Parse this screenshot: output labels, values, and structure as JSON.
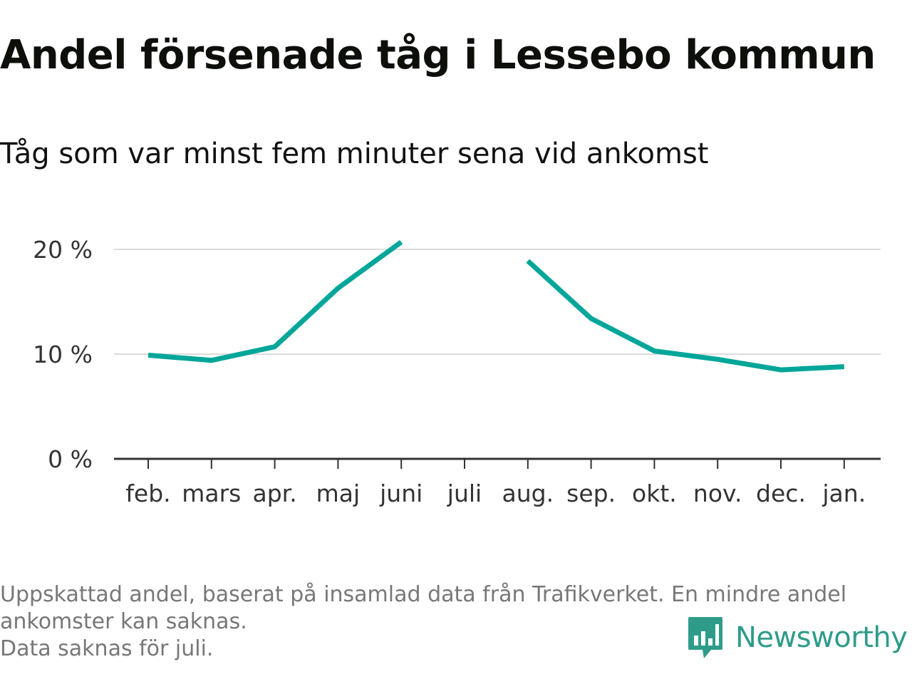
{
  "title": "Andel försenade tåg i Lessebo kommun",
  "subtitle": "Tåg som var minst fem minuter sena vid ankomst",
  "footnote": {
    "line1": "Uppskattad andel, baserat på insamlad data från Trafikverket. En mindre andel",
    "line2": "ankomster kan saknas.",
    "line3": "Data saknas för juli."
  },
  "brand": {
    "name": "Newsworthy",
    "color": "#2e9c89",
    "icon": "bar-chart-speech-bubble-icon"
  },
  "colors": {
    "line": "#00a699",
    "grid": "#dcdcdc",
    "axis": "#333333"
  },
  "chart_data": {
    "type": "line",
    "categories": [
      "feb.",
      "mars",
      "apr.",
      "maj",
      "juni",
      "juli",
      "aug.",
      "sep.",
      "okt.",
      "nov.",
      "dec.",
      "jan."
    ],
    "series": [
      {
        "values": [
          9.9,
          9.4,
          10.7,
          16.3,
          20.7,
          null,
          18.9,
          13.4,
          10.3,
          9.5,
          8.5,
          8.8
        ]
      }
    ],
    "yticks": [
      {
        "value": 0,
        "label": "0 %"
      },
      {
        "value": 10,
        "label": "10 %"
      },
      {
        "value": 20,
        "label": "20 %"
      }
    ],
    "ylim": [
      0,
      22
    ],
    "grid": true,
    "legend": "none"
  }
}
